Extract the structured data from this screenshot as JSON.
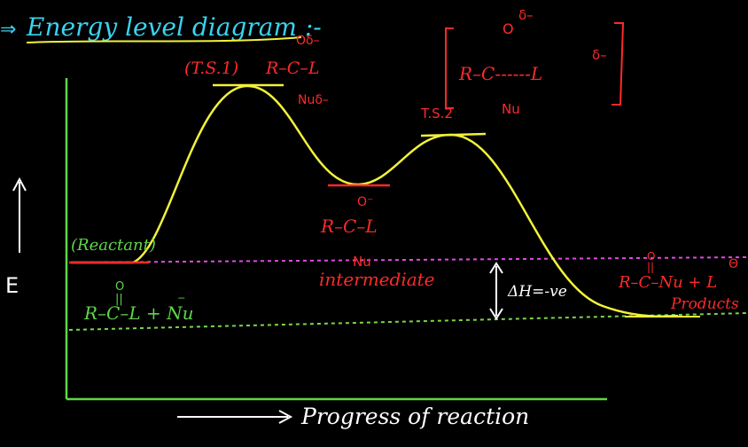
{
  "title": "Energy level diagram :-",
  "title_arrow": "⇒",
  "axes": {
    "y_label": "E",
    "x_label": "Progress of reaction"
  },
  "labels": {
    "reactant": "(Reactant)",
    "reactant_formula": "R–C–L + Nu",
    "reactant_o": "O",
    "reactant_dbl": "||",
    "reactant_nu_charge": "⁻",
    "ts1": "(T.S.1)",
    "ts1_formula": "R–C–L",
    "ts1_top": "Oδ–",
    "ts1_bottom": "Nuδ–",
    "intermediate": "intermediate",
    "inter_formula": "R–C–L",
    "inter_top": "O⁻",
    "inter_bottom": "Nu",
    "ts2": "T.S.2",
    "ts2_formula": "R–C------L",
    "ts2_top": "O",
    "ts2_delta_top": "δ–",
    "ts2_delta_right": "δ–",
    "ts2_bottom": "Nu",
    "delta_h": "ΔH=-ve",
    "product_formula": "R–C–Nu + L",
    "product_o": "O",
    "product_dbl": "||",
    "product_l_charge": "Θ",
    "products": "Products"
  },
  "colors": {
    "curve": "#f2f23a",
    "axes": "#5fd64a",
    "reactant_line": "#e04ae0",
    "product_line": "#7ad64a",
    "red_text": "#ff2a2a",
    "title": "#39d3f0",
    "underline": "#f2f23a"
  }
}
